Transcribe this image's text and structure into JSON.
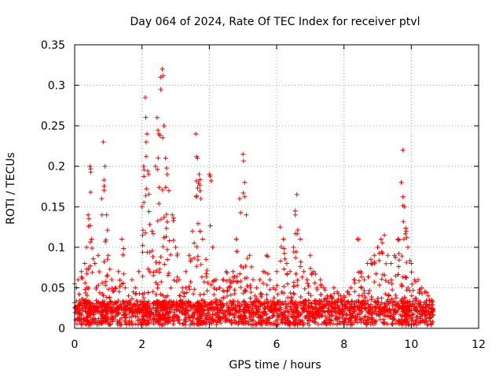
{
  "chart_data": {
    "type": "scatter",
    "title": "Day 064 of 2024, Rate Of TEC Index for receiver ptvl",
    "xlabel": "GPS time / hours",
    "ylabel": "ROTI / TECUs",
    "xlim": [
      0,
      12
    ],
    "ylim": [
      0,
      0.35
    ],
    "xticks": [
      "0",
      "2",
      "4",
      "6",
      "8",
      "10",
      "12"
    ],
    "yticks": [
      "0",
      "0.05",
      "0.1",
      "0.15",
      "0.2",
      "0.25",
      "0.3",
      "0.35"
    ],
    "grid": true,
    "marker": "+",
    "series_color": "#ff0000",
    "series": [
      {
        "name": "ROTI",
        "note": "dense baseline 0.005-0.035 TECU from 0 to 10.6 h; values below are the visible upper envelope and prominent peaks",
        "x": [
          0.0,
          0.1,
          0.2,
          0.3,
          0.35,
          0.4,
          0.45,
          0.5,
          0.6,
          0.7,
          0.8,
          0.85,
          0.9,
          0.95,
          1.0,
          1.1,
          1.2,
          1.3,
          1.4,
          1.5,
          1.6,
          1.7,
          1.8,
          1.9,
          2.0,
          2.05,
          2.1,
          2.15,
          2.2,
          2.3,
          2.4,
          2.45,
          2.5,
          2.55,
          2.6,
          2.65,
          2.7,
          2.75,
          2.8,
          2.9,
          3.0,
          3.1,
          3.2,
          3.3,
          3.4,
          3.5,
          3.6,
          3.65,
          3.7,
          3.75,
          3.8,
          3.9,
          4.0,
          4.1,
          4.2,
          4.3,
          4.4,
          4.5,
          4.6,
          4.7,
          4.8,
          4.9,
          5.0,
          5.05,
          5.1,
          5.2,
          5.3,
          5.4,
          5.5,
          5.6,
          5.7,
          5.8,
          5.9,
          6.0,
          6.1,
          6.2,
          6.3,
          6.4,
          6.5,
          6.55,
          6.6,
          6.7,
          6.8,
          6.9,
          7.0,
          7.1,
          7.2,
          7.3,
          7.4,
          7.5,
          7.6,
          7.7,
          7.8,
          7.9,
          8.0,
          8.1,
          8.2,
          8.3,
          8.4,
          8.5,
          8.6,
          8.7,
          8.8,
          8.9,
          9.0,
          9.1,
          9.2,
          9.3,
          9.4,
          9.5,
          9.6,
          9.7,
          9.75,
          9.8,
          9.85,
          9.9,
          10.0,
          10.1,
          10.2,
          10.3,
          10.4,
          10.5,
          10.6
        ],
        "y": [
          0.055,
          0.06,
          0.07,
          0.08,
          0.1,
          0.14,
          0.2,
          0.11,
          0.08,
          0.09,
          0.16,
          0.23,
          0.2,
          0.14,
          0.09,
          0.06,
          0.05,
          0.07,
          0.11,
          0.05,
          0.04,
          0.06,
          0.05,
          0.07,
          0.15,
          0.2,
          0.285,
          0.24,
          0.19,
          0.12,
          0.2,
          0.26,
          0.24,
          0.31,
          0.32,
          0.25,
          0.21,
          0.19,
          0.17,
          0.14,
          0.1,
          0.06,
          0.05,
          0.07,
          0.09,
          0.12,
          0.24,
          0.21,
          0.19,
          0.16,
          0.11,
          0.085,
          0.19,
          0.1,
          0.06,
          0.05,
          0.06,
          0.07,
          0.06,
          0.07,
          0.11,
          0.16,
          0.215,
          0.18,
          0.14,
          0.09,
          0.06,
          0.05,
          0.06,
          0.07,
          0.09,
          0.06,
          0.05,
          0.07,
          0.125,
          0.11,
          0.08,
          0.07,
          0.1,
          0.145,
          0.165,
          0.11,
          0.07,
          0.06,
          0.09,
          0.07,
          0.05,
          0.06,
          0.05,
          0.04,
          0.04,
          0.05,
          0.045,
          0.04,
          0.04,
          0.045,
          0.05,
          0.06,
          0.11,
          0.07,
          0.06,
          0.08,
          0.085,
          0.09,
          0.1,
          0.11,
          0.115,
          0.09,
          0.08,
          0.09,
          0.11,
          0.18,
          0.22,
          0.15,
          0.12,
          0.1,
          0.08,
          0.06,
          0.06,
          0.05,
          0.045,
          0.04,
          0.035
        ]
      }
    ]
  }
}
